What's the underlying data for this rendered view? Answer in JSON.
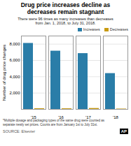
{
  "chart_data": {
    "type": "bar",
    "title": "Drug price increases decline as\ndecreases remain stagnant",
    "subtitle": "There were 96 times as many increases than decreases\nfrom Jan. 1, 2018, to July 31, 2018.",
    "ylabel": "Number of drug price changes",
    "categories": [
      "'15",
      "'16",
      "'17",
      "'18"
    ],
    "series": [
      {
        "name": "Increases",
        "color": "#2a7da8",
        "values": [
          8100,
          7150,
          6850,
          4400
        ]
      },
      {
        "name": "Decreases",
        "color": "#c89a10",
        "values": [
          85,
          80,
          115,
          46
        ]
      }
    ],
    "ylim": [
      0,
      9000
    ],
    "yticks": [
      {
        "value": 2000,
        "label": "2,000"
      },
      {
        "value": 4000,
        "label": "4,000"
      },
      {
        "value": 6000,
        "label": "6,000"
      },
      {
        "value": 8000,
        "label": "8,000"
      }
    ],
    "grid": true,
    "legend": "upper right",
    "annotations": [
      "*Multiple dosage and packaging types of the same drug were counted as\nseparate newly set prices. Counts are from January 1st to July 31st.",
      "SOURCE: Elsevier",
      "AP"
    ]
  }
}
